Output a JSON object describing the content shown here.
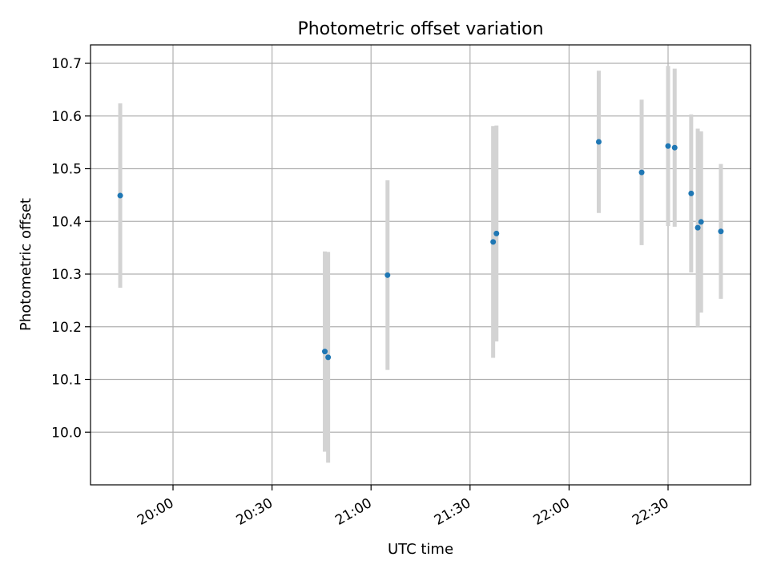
{
  "chart_data": {
    "type": "scatter",
    "title": "Photometric offset variation",
    "xlabel": "UTC time",
    "ylabel": "Photometric offset",
    "x_axis_kind": "time",
    "xlim": [
      "19:35",
      "22:55"
    ],
    "ylim": [
      9.9,
      10.735
    ],
    "grid": true,
    "x_ticks": [
      "20:00",
      "20:30",
      "21:00",
      "21:30",
      "22:00",
      "22:30"
    ],
    "y_ticks": [
      10.0,
      10.1,
      10.2,
      10.3,
      10.4,
      10.5,
      10.6,
      10.7
    ],
    "series": [
      {
        "marker_color": "#1f77b4",
        "errorbar_color": "#d3d3d3",
        "points": [
          {
            "x": "19:44",
            "y": 10.449,
            "yerr": 0.175
          },
          {
            "x": "20:46",
            "y": 10.153,
            "yerr": 0.19
          },
          {
            "x": "20:47",
            "y": 10.142,
            "yerr": 0.2
          },
          {
            "x": "21:05",
            "y": 10.298,
            "yerr": 0.18
          },
          {
            "x": "21:37",
            "y": 10.361,
            "yerr": 0.22
          },
          {
            "x": "21:38",
            "y": 10.377,
            "yerr": 0.205
          },
          {
            "x": "22:09",
            "y": 10.551,
            "yerr": 0.135
          },
          {
            "x": "22:22",
            "y": 10.493,
            "yerr": 0.138
          },
          {
            "x": "22:30",
            "y": 10.543,
            "yerr": 0.152
          },
          {
            "x": "22:32",
            "y": 10.54,
            "yerr": 0.15
          },
          {
            "x": "22:37",
            "y": 10.453,
            "yerr": 0.15
          },
          {
            "x": "22:39",
            "y": 10.388,
            "yerr": 0.188
          },
          {
            "x": "22:40",
            "y": 10.399,
            "yerr": 0.172
          },
          {
            "x": "22:46",
            "y": 10.381,
            "yerr": 0.128
          }
        ]
      }
    ]
  }
}
